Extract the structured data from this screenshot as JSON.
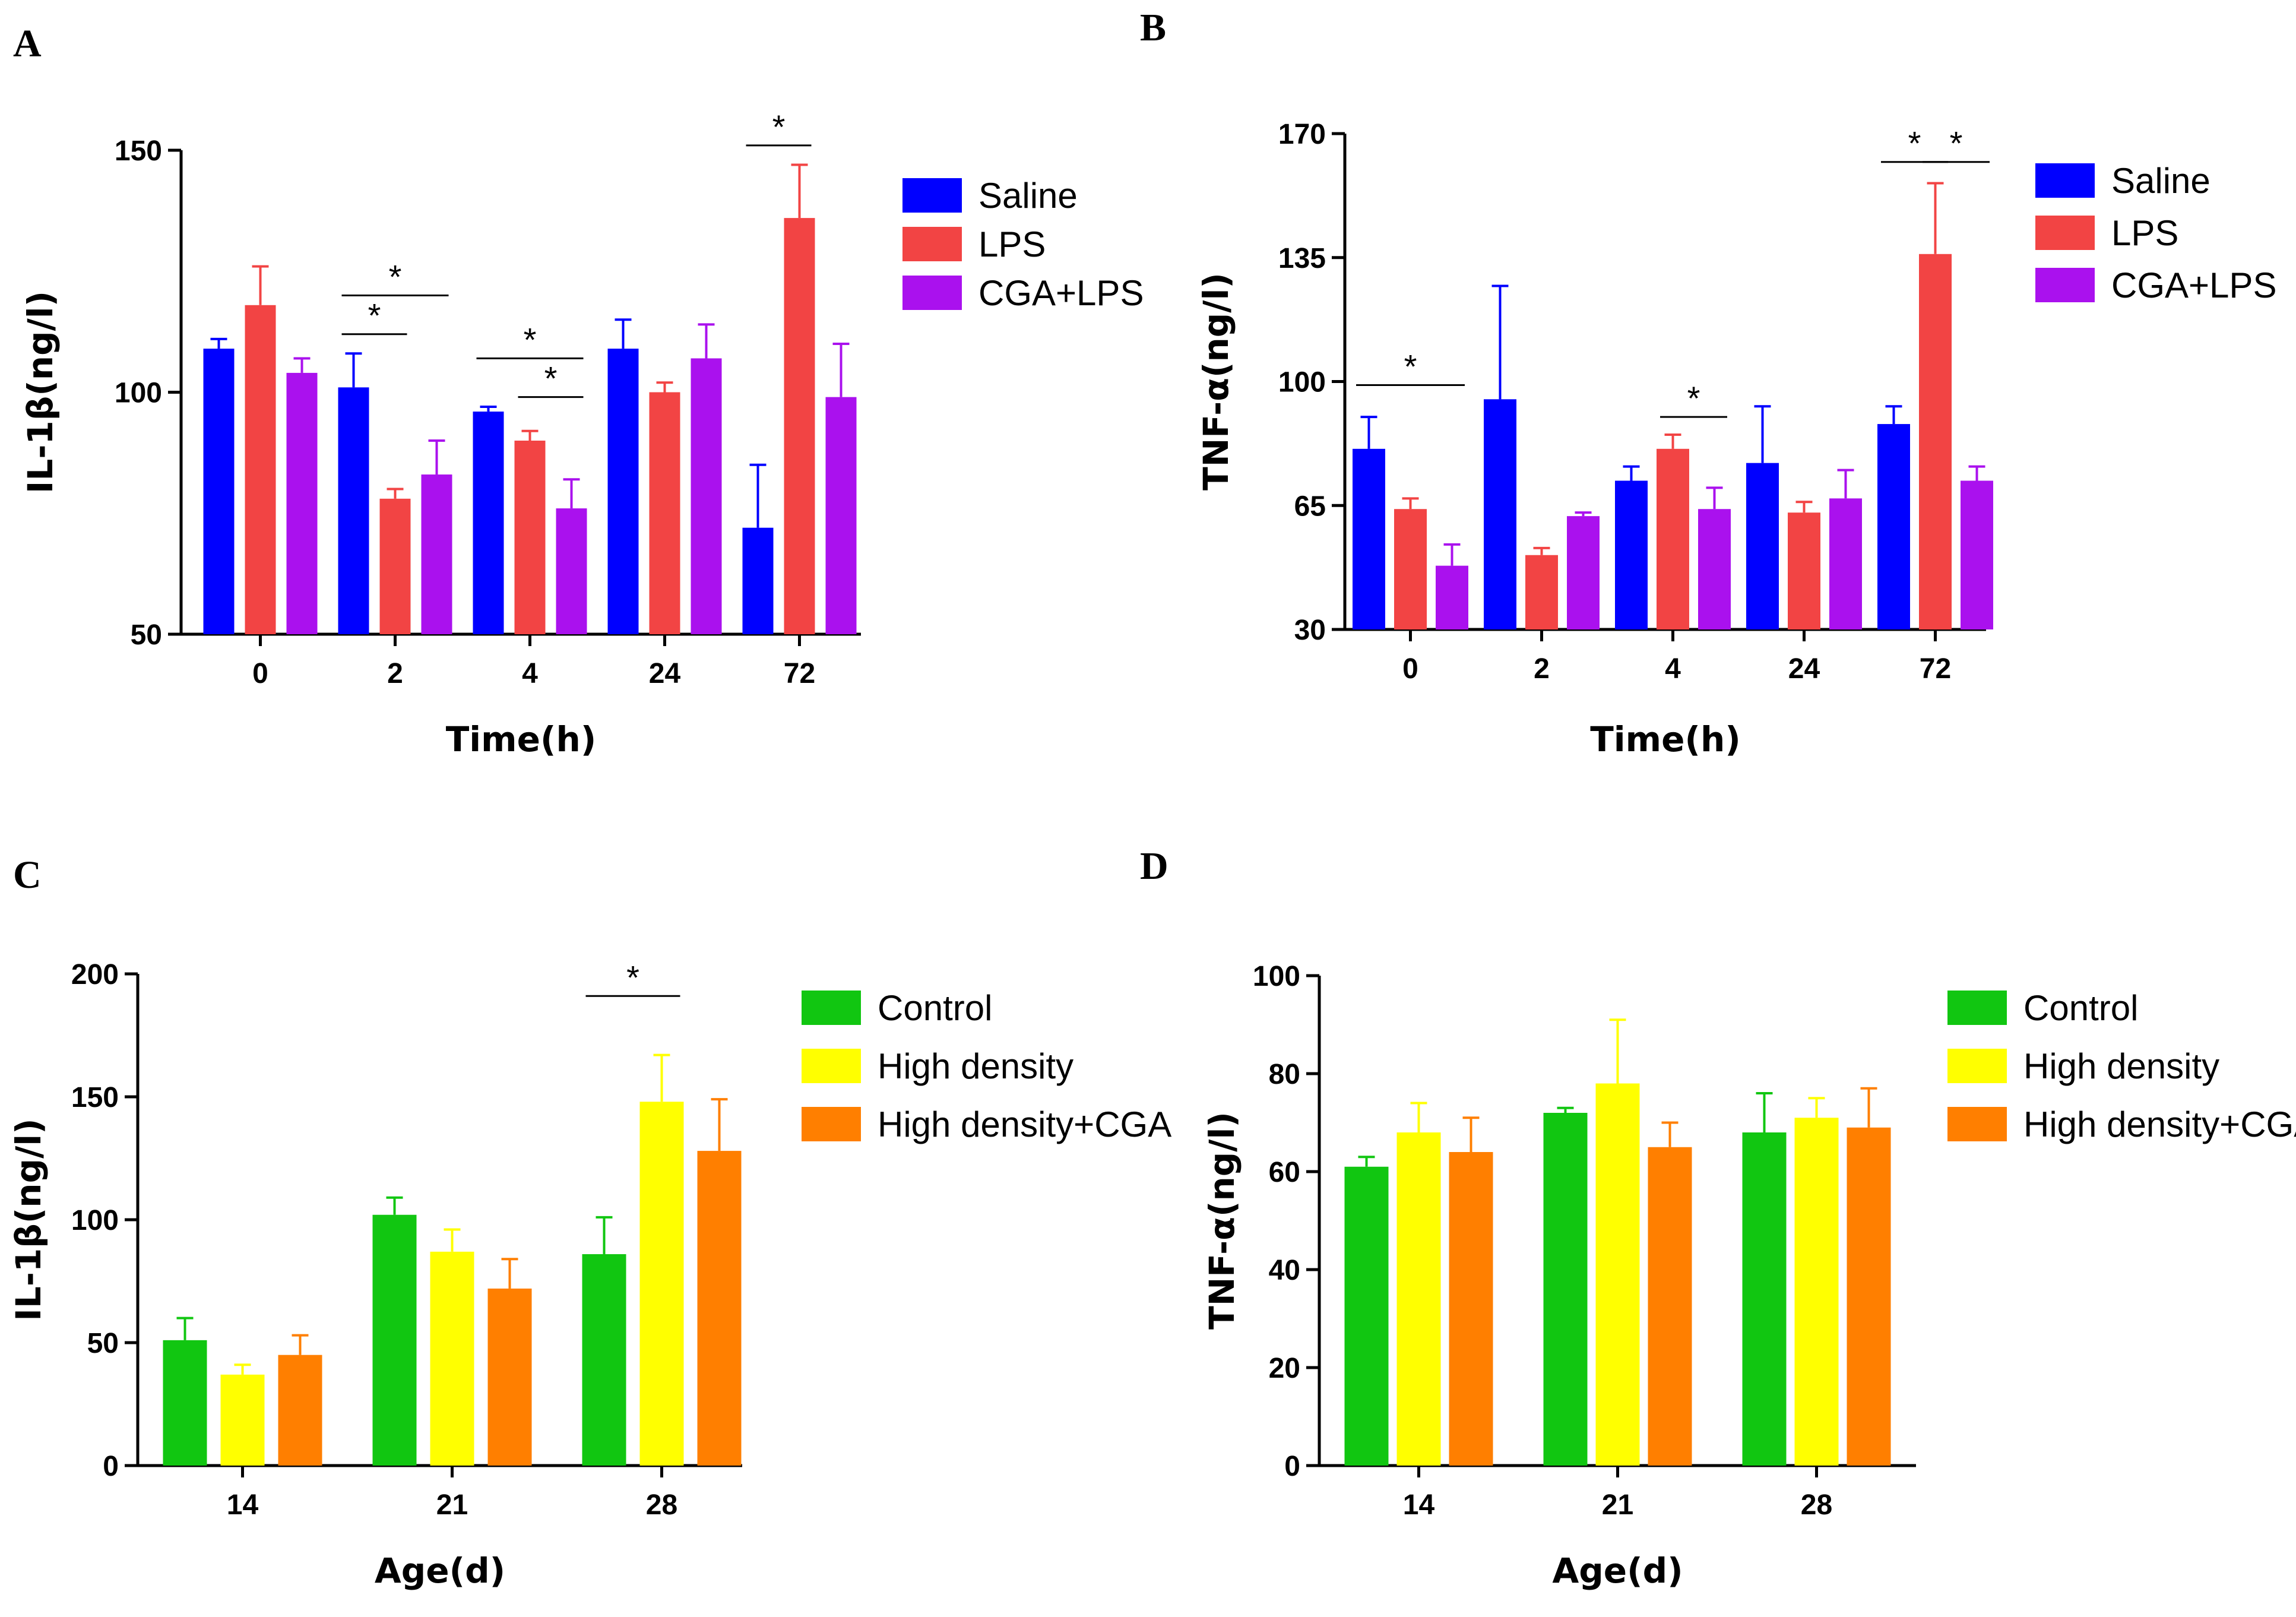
{
  "chart_data": [
    {
      "panel": "A",
      "type": "bar",
      "categories": [
        "0",
        "2",
        "4",
        "24",
        "72"
      ],
      "xlabel": "Time(h)",
      "ylabel": "IL-1β(ng/l)",
      "ylim": [
        50,
        150
      ],
      "yticks": [
        "50",
        "100",
        "150"
      ],
      "series": [
        {
          "name": "Saline",
          "color": "#0000ff",
          "values": [
            109,
            101,
            96,
            109,
            72
          ],
          "errors": [
            2,
            7,
            1,
            6,
            13
          ]
        },
        {
          "name": "LPS",
          "color": "#f24444",
          "values": [
            118,
            78,
            90,
            100,
            136
          ],
          "errors": [
            8,
            2,
            2,
            2,
            11
          ]
        },
        {
          "name": "CGA+LPS",
          "color": "#aa11ee",
          "values": [
            104,
            83,
            76,
            107,
            99
          ],
          "errors": [
            3,
            7,
            6,
            7,
            11
          ]
        }
      ],
      "significance": [
        {
          "label": "*",
          "cat": 1,
          "from": 0,
          "to": 2,
          "y": 120
        },
        {
          "label": "*",
          "cat": 1,
          "from": 0,
          "to": 1,
          "y": 112
        },
        {
          "label": "*",
          "cat": 2,
          "from": 0,
          "to": 2,
          "y": 107
        },
        {
          "label": "*",
          "cat": 2,
          "from": 1,
          "to": 2,
          "y": 99
        },
        {
          "label": "*",
          "cat": 4,
          "from": 0,
          "to": 1,
          "y": 151
        }
      ]
    },
    {
      "panel": "B",
      "type": "bar",
      "categories": [
        "0",
        "2",
        "4",
        "24",
        "72"
      ],
      "xlabel": "Time(h)",
      "ylabel": "TNF-α(ng/l)",
      "ylim": [
        30,
        170
      ],
      "yticks": [
        "30",
        "65",
        "100",
        "135",
        "170"
      ],
      "series": [
        {
          "name": "Saline",
          "color": "#0000ff",
          "values": [
            81,
            95,
            72,
            77,
            88
          ],
          "errors": [
            9,
            32,
            4,
            16,
            5
          ]
        },
        {
          "name": "LPS",
          "color": "#f24444",
          "values": [
            64,
            51,
            81,
            63,
            136
          ],
          "errors": [
            3,
            2,
            4,
            3,
            20
          ]
        },
        {
          "name": "CGA+LPS",
          "color": "#aa11ee",
          "values": [
            48,
            62,
            64,
            67,
            72
          ],
          "errors": [
            6,
            1,
            6,
            8,
            4
          ]
        }
      ],
      "significance": [
        {
          "label": "*",
          "cat": 0,
          "from": 0,
          "to": 2,
          "y": 99
        },
        {
          "label": "*",
          "cat": 2,
          "from": 1,
          "to": 2,
          "y": 90
        },
        {
          "label": "*",
          "cat": 4,
          "from": 0,
          "to": 1,
          "y": 162
        },
        {
          "label": "*",
          "cat": 4,
          "from": 1,
          "to": 2,
          "y": 162
        }
      ]
    },
    {
      "panel": "C",
      "type": "bar",
      "categories": [
        "14",
        "21",
        "28"
      ],
      "xlabel": "Age(d)",
      "ylabel": "IL-1β(ng/l)",
      "ylim": [
        0,
        200
      ],
      "yticks": [
        "0",
        "50",
        "100",
        "150",
        "200"
      ],
      "series": [
        {
          "name": "Control",
          "color": "#11c611",
          "values": [
            51,
            102,
            86
          ],
          "errors": [
            9,
            7,
            15
          ]
        },
        {
          "name": "High density",
          "color": "#ffff00",
          "values": [
            37,
            87,
            148
          ],
          "errors": [
            4,
            9,
            19
          ]
        },
        {
          "name": "High density+CGA",
          "color": "#ff7f00",
          "values": [
            45,
            72,
            128
          ],
          "errors": [
            8,
            12,
            21
          ]
        }
      ],
      "significance": [
        {
          "label": "*",
          "cat": 2,
          "from": 0,
          "to": 1,
          "y": 191
        }
      ]
    },
    {
      "panel": "D",
      "type": "bar",
      "categories": [
        "14",
        "21",
        "28"
      ],
      "xlabel": "Age(d)",
      "ylabel": "TNF-α(ng/l)",
      "ylim": [
        0,
        100
      ],
      "yticks": [
        "0",
        "20",
        "40",
        "60",
        "80",
        "100"
      ],
      "series": [
        {
          "name": "Control",
          "color": "#11c611",
          "values": [
            61,
            72,
            68
          ],
          "errors": [
            2,
            1,
            8
          ]
        },
        {
          "name": "High density",
          "color": "#ffff00",
          "values": [
            68,
            78,
            71
          ],
          "errors": [
            6,
            13,
            4
          ]
        },
        {
          "name": "High density+CGA",
          "color": "#ff7f00",
          "values": [
            64,
            65,
            69
          ],
          "errors": [
            7,
            5,
            8
          ]
        }
      ],
      "significance": []
    }
  ]
}
